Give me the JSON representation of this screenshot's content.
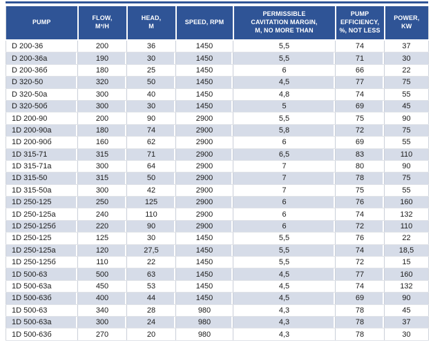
{
  "table": {
    "colors": {
      "accent": "#2F5496",
      "stripe": "#D6DCE8",
      "header_text": "#FFFFFF",
      "body_text": "#1A1A1A"
    },
    "columns": [
      {
        "key": "pump",
        "label": "PUMP"
      },
      {
        "key": "flow",
        "label": "FLOW,\nM³/H"
      },
      {
        "key": "head",
        "label": "HEAD,\nM"
      },
      {
        "key": "speed",
        "label": "SPEED, RPM"
      },
      {
        "key": "cavitation",
        "label": "PERMISSIBLE\nCAVITATION MARGIN,\nM, NO MORE THAN"
      },
      {
        "key": "efficiency",
        "label": "PUMP\nEFFICIENCY,\n%, NOT LESS"
      },
      {
        "key": "power",
        "label": "POWER,\nKW"
      }
    ],
    "rows": [
      [
        "D 200-36",
        "200",
        "36",
        "1450",
        "5,5",
        "74",
        "37"
      ],
      [
        "D 200-36a",
        "190",
        "30",
        "1450",
        "5,5",
        "71",
        "30"
      ],
      [
        "D 200-36б",
        "180",
        "25",
        "1450",
        "6",
        "66",
        "22"
      ],
      [
        "D 320-50",
        "320",
        "50",
        "1450",
        "4,5",
        "77",
        "75"
      ],
      [
        "D 320-50a",
        "300",
        "40",
        "1450",
        "4,8",
        "74",
        "55"
      ],
      [
        "D 320-50б",
        "300",
        "30",
        "1450",
        "5",
        "69",
        "45"
      ],
      [
        "1D 200-90",
        "200",
        "90",
        "2900",
        "5,5",
        "75",
        "90"
      ],
      [
        "1D 200-90a",
        "180",
        "74",
        "2900",
        "5,8",
        "72",
        "75"
      ],
      [
        "1D 200-90б",
        "160",
        "62",
        "2900",
        "6",
        "69",
        "55"
      ],
      [
        "1D 315-71",
        "315",
        "71",
        "2900",
        "6,5",
        "83",
        "110"
      ],
      [
        "1D 315-71a",
        "300",
        "64",
        "2900",
        "7",
        "80",
        "90"
      ],
      [
        "1D 315-50",
        "315",
        "50",
        "2900",
        "7",
        "78",
        "75"
      ],
      [
        "1D 315-50a",
        "300",
        "42",
        "2900",
        "7",
        "75",
        "55"
      ],
      [
        "1D 250-125",
        "250",
        "125",
        "2900",
        "6",
        "76",
        "160"
      ],
      [
        "1D 250-125a",
        "240",
        "110",
        "2900",
        "6",
        "74",
        "132"
      ],
      [
        "1D 250-125б",
        "220",
        "90",
        "2900",
        "6",
        "72",
        "110"
      ],
      [
        "1D 250-125",
        "125",
        "30",
        "1450",
        "5,5",
        "76",
        "22"
      ],
      [
        "1D 250-125a",
        "120",
        "27,5",
        "1450",
        "5,5",
        "74",
        "18,5"
      ],
      [
        "1D 250-125б",
        "110",
        "22",
        "1450",
        "5,5",
        "72",
        "15"
      ],
      [
        "1D 500-63",
        "500",
        "63",
        "1450",
        "4,5",
        "77",
        "160"
      ],
      [
        "1D 500-63a",
        "450",
        "53",
        "1450",
        "4,5",
        "74",
        "132"
      ],
      [
        "1D 500-63б",
        "400",
        "44",
        "1450",
        "4,5",
        "69",
        "90"
      ],
      [
        "1D 500-63",
        "340",
        "28",
        "980",
        "4,3",
        "78",
        "45"
      ],
      [
        "1D 500-63a",
        "300",
        "24",
        "980",
        "4,3",
        "78",
        "37"
      ],
      [
        "1D 500-63б",
        "270",
        "20",
        "980",
        "4,3",
        "78",
        "30"
      ]
    ]
  }
}
